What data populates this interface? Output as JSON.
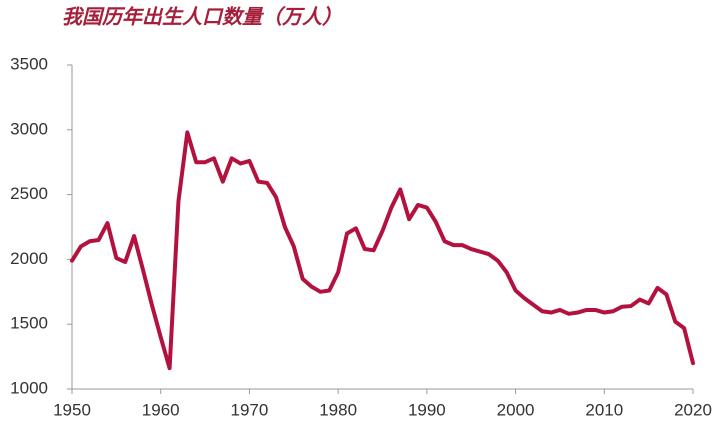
{
  "chart_data": {
    "type": "line",
    "title": "我国历年出生人口数量（万人）",
    "x": [
      1950,
      1951,
      1952,
      1953,
      1954,
      1955,
      1956,
      1957,
      1958,
      1959,
      1960,
      1961,
      1962,
      1963,
      1964,
      1965,
      1966,
      1967,
      1968,
      1969,
      1970,
      1971,
      1972,
      1973,
      1974,
      1975,
      1976,
      1977,
      1978,
      1979,
      1980,
      1981,
      1982,
      1983,
      1984,
      1985,
      1986,
      1987,
      1988,
      1989,
      1990,
      1991,
      1992,
      1993,
      1994,
      1995,
      1996,
      1997,
      1998,
      1999,
      2000,
      2001,
      2002,
      2003,
      2004,
      2005,
      2006,
      2007,
      2008,
      2009,
      2010,
      2011,
      2012,
      2013,
      2014,
      2015,
      2016,
      2017,
      2018,
      2019,
      2020
    ],
    "values": [
      1990,
      2100,
      2140,
      2150,
      2280,
      2010,
      1980,
      2180,
      1920,
      1650,
      1400,
      1160,
      2450,
      2980,
      2750,
      2750,
      2780,
      2600,
      2780,
      2740,
      2760,
      2600,
      2590,
      2480,
      2250,
      2100,
      1850,
      1790,
      1750,
      1760,
      1900,
      2200,
      2240,
      2080,
      2070,
      2220,
      2400,
      2540,
      2310,
      2420,
      2400,
      2290,
      2140,
      2110,
      2110,
      2080,
      2060,
      2040,
      1990,
      1900,
      1760,
      1700,
      1650,
      1600,
      1590,
      1610,
      1580,
      1590,
      1610,
      1610,
      1590,
      1600,
      1635,
      1640,
      1690,
      1660,
      1780,
      1730,
      1520,
      1470,
      1200
    ],
    "color": "#b3123f",
    "xlim": [
      1950,
      2020
    ],
    "xticks": [
      1950,
      1960,
      1970,
      1980,
      1990,
      2000,
      2010,
      2020
    ],
    "ylim": [
      1000,
      3500
    ],
    "yticks": [
      1000,
      1500,
      2000,
      2500,
      3000,
      3500
    ],
    "grid": false
  }
}
